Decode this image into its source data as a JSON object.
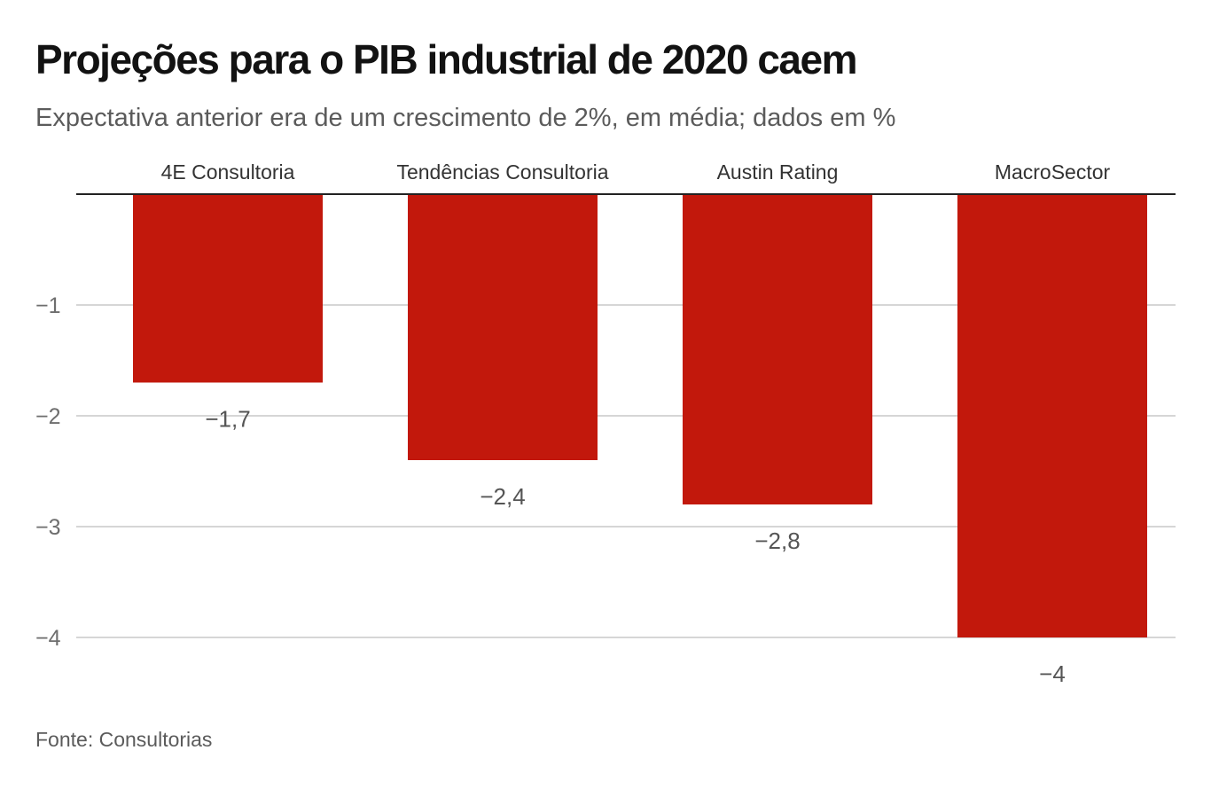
{
  "chart_data": {
    "type": "bar",
    "title": "Projeções para o PIB industrial de 2020 caem",
    "subtitle": "Expectativa anterior era de um crescimento de 2%, em média; dados em %",
    "source": "Fonte: Consultorias",
    "categories": [
      "4E Consultoria",
      "Tendências Consultoria",
      "Austin Rating",
      "MacroSector"
    ],
    "values": [
      -1.7,
      -2.4,
      -2.8,
      -4
    ],
    "value_labels": [
      "−1,7",
      "−2,4",
      "−2,8",
      "−4"
    ],
    "ylim": [
      -4,
      0
    ],
    "yticks": [
      -1,
      -2,
      -3,
      -4
    ],
    "ytick_labels": [
      "−1",
      "−2",
      "−3",
      "−4"
    ],
    "category_label_position": "top",
    "grid": true,
    "bar_color": "#c2180c",
    "gridline_color": "#d6d6d6",
    "baseline_color": "#222222"
  }
}
